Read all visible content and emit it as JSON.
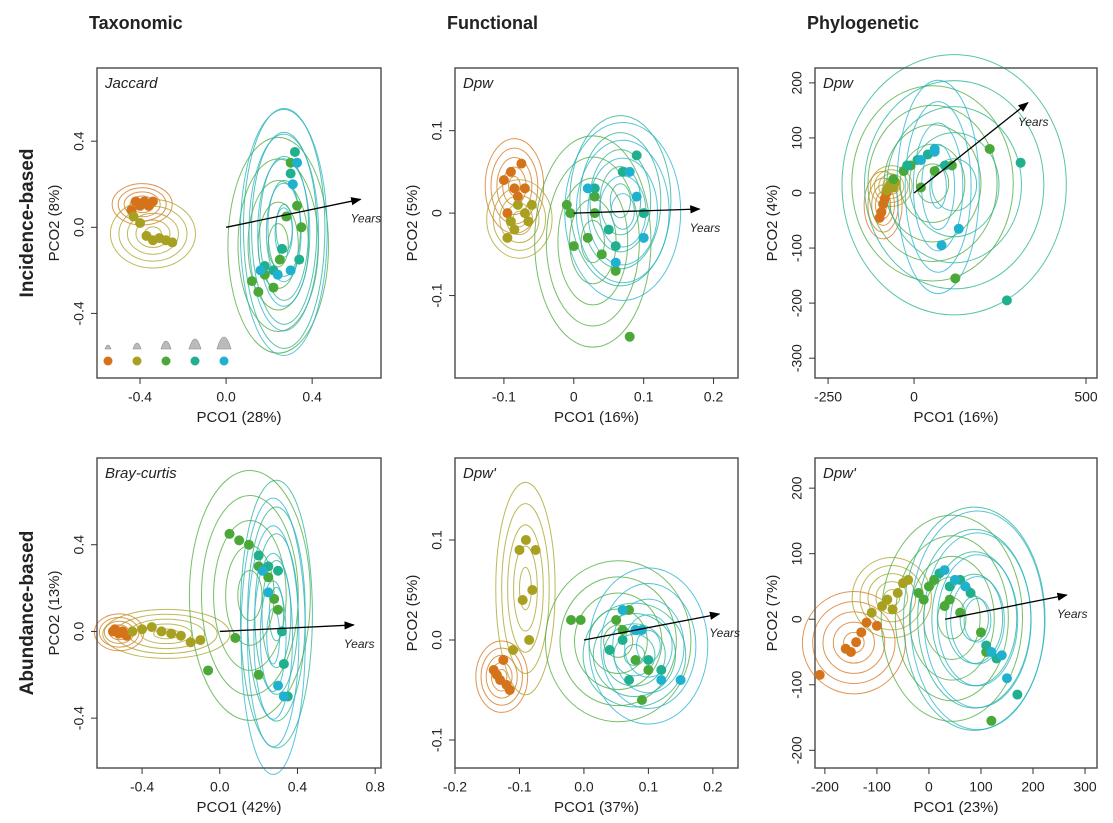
{
  "chart_data": [
    {
      "type": "scatter",
      "title": "Taxonomic",
      "row_label": "Incidence-based",
      "annotation": "Jaccard",
      "x_label": "PCO1 (28%)",
      "y_label": "PCO2 (8%)",
      "xlim": [
        -0.6,
        0.72
      ],
      "ylim": [
        -0.7,
        0.74
      ],
      "xticks": [
        -0.4,
        {
          "value": 0,
          "label": "0.0"
        },
        0.4
      ],
      "yticks": [
        -0.4,
        {
          "value": 0,
          "label": "0.0"
        },
        0.4
      ],
      "legend": "lower left",
      "arrow": {
        "label": "Years",
        "x": [
          0,
          0.625
        ],
        "y": [
          0,
          0.13
        ]
      },
      "series": [
        {
          "color": "#d4731a",
          "x": [
            -0.44,
            -0.42,
            -0.4,
            -0.38,
            -0.36,
            -0.34
          ],
          "y": [
            0.08,
            0.12,
            0.1,
            0.12,
            0.1,
            0.12
          ]
        },
        {
          "color": "#a8a020",
          "x": [
            -0.43,
            -0.4,
            -0.37,
            -0.34,
            -0.31,
            -0.28,
            -0.25
          ],
          "y": [
            0.05,
            0.02,
            -0.04,
            -0.06,
            -0.05,
            -0.06,
            -0.07
          ]
        },
        {
          "color": "#4aa838",
          "x": [
            0.12,
            0.15,
            0.18,
            0.22,
            0.25,
            0.28,
            0.3,
            0.33,
            0.35
          ],
          "y": [
            -0.25,
            -0.3,
            -0.22,
            -0.28,
            -0.15,
            0.05,
            0.3,
            0.1,
            0.0
          ]
        },
        {
          "color": "#20b090",
          "x": [
            0.18,
            0.22,
            0.26,
            0.3,
            0.32,
            0.34
          ],
          "y": [
            -0.18,
            -0.2,
            -0.1,
            0.25,
            0.35,
            -0.15
          ]
        },
        {
          "color": "#20b0d0",
          "x": [
            0.16,
            0.24,
            0.3,
            0.33,
            0.31
          ],
          "y": [
            -0.2,
            -0.22,
            -0.2,
            0.3,
            0.2
          ]
        }
      ]
    },
    {
      "type": "scatter",
      "title": "Functional",
      "annotation": "Dpw",
      "x_label": "PCO1 (16%)",
      "y_label": "PCO2 (5%)",
      "xlim": [
        -0.17,
        0.235
      ],
      "ylim": [
        -0.2,
        0.176
      ],
      "xticks": [
        -0.1,
        0,
        0.1,
        0.2
      ],
      "yticks": [
        -0.1,
        0,
        0.1
      ],
      "arrow": {
        "label": "Years",
        "x": [
          0,
          0.18
        ],
        "y": [
          0,
          0.005
        ]
      },
      "series": [
        {
          "color": "#d4731a",
          "x": [
            -0.1,
            -0.09,
            -0.085,
            -0.08,
            -0.075,
            -0.07,
            -0.095
          ],
          "y": [
            0.04,
            0.05,
            0.03,
            0.02,
            0.06,
            0.03,
            0.0
          ]
        },
        {
          "color": "#a8a020",
          "x": [
            -0.09,
            -0.08,
            -0.07,
            -0.06,
            -0.095,
            -0.085,
            -0.065
          ],
          "y": [
            -0.01,
            0.01,
            0.0,
            0.01,
            -0.03,
            -0.02,
            -0.01
          ]
        },
        {
          "color": "#4aa838",
          "x": [
            -0.01,
            0.0,
            0.02,
            0.03,
            0.04,
            0.06,
            0.08,
            -0.005,
            0.03
          ],
          "y": [
            0.01,
            -0.04,
            -0.03,
            0.0,
            -0.05,
            -0.07,
            -0.15,
            0.0,
            0.02
          ]
        },
        {
          "color": "#20b090",
          "x": [
            0.03,
            0.05,
            0.07,
            0.09,
            0.1,
            0.06
          ],
          "y": [
            0.03,
            -0.02,
            0.05,
            0.07,
            0.0,
            -0.04
          ]
        },
        {
          "color": "#20b0d0",
          "x": [
            0.02,
            0.06,
            0.08,
            0.09,
            0.1
          ],
          "y": [
            0.03,
            -0.06,
            0.05,
            0.02,
            -0.03
          ]
        }
      ]
    },
    {
      "type": "scatter",
      "title": "Phylogenetic",
      "annotation": "Dpw",
      "x_label": "PCO1 (16%)",
      "y_label": "PCO2 (4%)",
      "xlim": [
        -288,
        532
      ],
      "ylim": [
        -336,
        227
      ],
      "xticks": [
        -250,
        0,
        500
      ],
      "yticks": [
        -300,
        -200,
        -100,
        0,
        100,
        200
      ],
      "arrow": {
        "label": "Years",
        "x": [
          0,
          331
        ],
        "y": [
          0,
          164
        ]
      },
      "series": [
        {
          "color": "#d4731a",
          "x": [
            -100,
            -95,
            -90,
            -85,
            -80
          ],
          "y": [
            -45,
            -35,
            -20,
            -10,
            0
          ]
        },
        {
          "color": "#a8a020",
          "x": [
            -80,
            -70,
            -60,
            -55
          ],
          "y": [
            5,
            15,
            10,
            20
          ]
        },
        {
          "color": "#4aa838",
          "x": [
            -60,
            -30,
            -10,
            20,
            60,
            110,
            120,
            220
          ],
          "y": [
            25,
            40,
            50,
            10,
            40,
            50,
            -155,
            80
          ]
        },
        {
          "color": "#20b090",
          "x": [
            -20,
            10,
            40,
            90,
            310,
            270
          ],
          "y": [
            50,
            60,
            70,
            50,
            55,
            -195
          ]
        },
        {
          "color": "#20b0d0",
          "x": [
            20,
            60,
            80,
            130,
            60
          ],
          "y": [
            60,
            80,
            -95,
            -65,
            75
          ]
        }
      ]
    },
    {
      "type": "scatter",
      "row_label": "Abundance-based",
      "annotation": "Bray-curtis",
      "x_label": "PCO1 (42%)",
      "y_label": "PCO2 (13%)",
      "xlim": [
        -0.632,
        0.83
      ],
      "ylim": [
        -0.63,
        0.8
      ],
      "xticks": [
        -0.4,
        {
          "value": 0,
          "label": "0.0"
        },
        0.4,
        0.8
      ],
      "yticks": [
        -0.4,
        {
          "value": 0,
          "label": "0.0"
        },
        0.4
      ],
      "arrow": {
        "label": "Years",
        "x": [
          0,
          0.69
        ],
        "y": [
          0,
          0.03
        ]
      },
      "series": [
        {
          "color": "#d4731a",
          "x": [
            -0.55,
            -0.52,
            -0.5,
            -0.54,
            -0.48
          ],
          "y": [
            0,
            -0.01,
            0,
            0.01,
            -0.02
          ]
        },
        {
          "color": "#a8a020",
          "x": [
            -0.45,
            -0.4,
            -0.35,
            -0.3,
            -0.25,
            -0.2,
            -0.15,
            -0.1
          ],
          "y": [
            0,
            0.01,
            0.02,
            0,
            -0.01,
            -0.02,
            -0.05,
            -0.04
          ]
        },
        {
          "color": "#4aa838",
          "x": [
            0.05,
            0.1,
            0.15,
            0.2,
            0.25,
            0.28,
            0.3,
            0.08,
            -0.06,
            0.2
          ],
          "y": [
            0.45,
            0.42,
            0.4,
            0.3,
            0.25,
            0.15,
            0.1,
            -0.03,
            -0.18,
            -0.2
          ]
        },
        {
          "color": "#20b090",
          "x": [
            0.2,
            0.25,
            0.3,
            0.33,
            0.35,
            0.32
          ],
          "y": [
            0.35,
            0.3,
            0.28,
            -0.15,
            -0.3,
            0
          ]
        },
        {
          "color": "#20b0d0",
          "x": [
            0.22,
            0.25,
            0.3,
            0.33
          ],
          "y": [
            0.28,
            0.18,
            -0.25,
            -0.3
          ]
        }
      ]
    },
    {
      "type": "scatter",
      "annotation": "Dpw'",
      "x_label": "PCO1 (37%)",
      "y_label": "PCO2 (5%)",
      "xlim": [
        -0.2,
        0.239
      ],
      "ylim": [
        -0.128,
        0.182
      ],
      "xticks": [
        -0.2,
        -0.1,
        {
          "value": 0,
          "label": "0.0"
        },
        0.1,
        0.2
      ],
      "yticks": [
        -0.1,
        {
          "value": 0,
          "label": "0.0"
        },
        0.1
      ],
      "arrow": {
        "label": "Years",
        "x": [
          0,
          0.21
        ],
        "y": [
          0,
          0.026
        ]
      },
      "series": [
        {
          "color": "#d4731a",
          "x": [
            -0.14,
            -0.13,
            -0.12,
            -0.125,
            -0.115,
            -0.135
          ],
          "y": [
            -0.03,
            -0.04,
            -0.045,
            -0.02,
            -0.05,
            -0.035
          ]
        },
        {
          "color": "#a8a020",
          "x": [
            -0.1,
            -0.09,
            -0.08,
            -0.095,
            -0.075,
            -0.085,
            -0.11
          ],
          "y": [
            0.09,
            0.1,
            0.05,
            0.04,
            0.09,
            0,
            -0.01
          ]
        },
        {
          "color": "#4aa838",
          "x": [
            -0.02,
            -0.005,
            0.05,
            0.07,
            0.08,
            0.1,
            0.09,
            0.06
          ],
          "y": [
            0.02,
            0.02,
            0.02,
            0.03,
            -0.02,
            -0.03,
            -0.06,
            0.01
          ]
        },
        {
          "color": "#20b090",
          "x": [
            0.04,
            0.06,
            0.08,
            0.1,
            0.12,
            0.07
          ],
          "y": [
            -0.01,
            0,
            0.01,
            -0.02,
            -0.03,
            -0.04
          ]
        },
        {
          "color": "#20b0d0",
          "x": [
            0.06,
            0.08,
            0.12,
            0.15,
            0.09
          ],
          "y": [
            0.03,
            0.01,
            -0.04,
            -0.04,
            0.01
          ]
        }
      ]
    },
    {
      "type": "scatter",
      "annotation": "Dpw'",
      "x_label": "PCO1 (23%)",
      "y_label": "PCO2 (7%)",
      "xlim": [
        -219,
        323
      ],
      "ylim": [
        -227,
        246
      ],
      "xticks": [
        -200,
        -100,
        0,
        100,
        200,
        300
      ],
      "yticks": [
        -200,
        -100,
        0,
        100,
        200
      ],
      "arrow": {
        "label": "Years",
        "x": [
          31,
          265
        ],
        "y": [
          0,
          37
        ]
      },
      "series": [
        {
          "color": "#d4731a",
          "x": [
            -210,
            -160,
            -150,
            -140,
            -130,
            -120,
            -100
          ],
          "y": [
            -85,
            -45,
            -50,
            -35,
            -20,
            -5,
            -10
          ]
        },
        {
          "color": "#a8a020",
          "x": [
            -110,
            -90,
            -80,
            -60,
            -50,
            -40,
            -70
          ],
          "y": [
            10,
            20,
            30,
            40,
            55,
            60,
            15
          ]
        },
        {
          "color": "#4aa838",
          "x": [
            -20,
            0,
            10,
            30,
            40,
            60,
            100,
            110,
            120,
            -10
          ],
          "y": [
            40,
            50,
            60,
            20,
            30,
            10,
            -20,
            -50,
            -155,
            30
          ]
        },
        {
          "color": "#20b090",
          "x": [
            20,
            40,
            60,
            80,
            110,
            130,
            170
          ],
          "y": [
            70,
            50,
            60,
            40,
            -40,
            -60,
            -115
          ]
        },
        {
          "color": "#20b0d0",
          "x": [
            30,
            50,
            70,
            120,
            140,
            150
          ],
          "y": [
            75,
            60,
            50,
            -50,
            -55,
            -90
          ]
        }
      ]
    }
  ]
}
